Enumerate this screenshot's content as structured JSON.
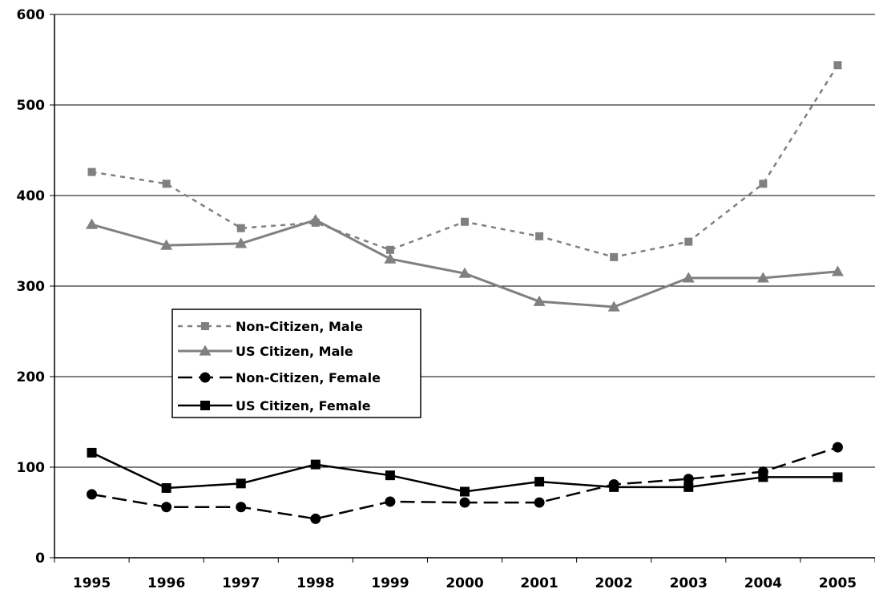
{
  "chart_data": {
    "type": "line",
    "categories": [
      "1995",
      "1996",
      "1997",
      "1998",
      "1999",
      "2000",
      "2001",
      "2002",
      "2003",
      "2004",
      "2005"
    ],
    "ylim": [
      0,
      600
    ],
    "yticks": [
      "0",
      "100",
      "200",
      "300",
      "400",
      "500",
      "600"
    ],
    "grid": true,
    "legend_position": "center-left",
    "series": [
      {
        "name": "Non-Citizen, Male",
        "values": [
          426,
          413,
          364,
          370,
          340,
          371,
          355,
          332,
          349,
          413,
          544
        ],
        "color": "#808080",
        "line": "dotted",
        "marker": "square"
      },
      {
        "name": "US Citizen, Male",
        "values": [
          368,
          345,
          347,
          373,
          330,
          314,
          283,
          277,
          309,
          309,
          316
        ],
        "color": "#808080",
        "line": "solid",
        "marker": "triangle"
      },
      {
        "name": "Non-Citizen, Female",
        "values": [
          70,
          56,
          56,
          43,
          62,
          61,
          61,
          81,
          87,
          95,
          122
        ],
        "color": "#000000",
        "line": "dashed",
        "marker": "circle"
      },
      {
        "name": "US Citizen, Female",
        "values": [
          116,
          77,
          82,
          103,
          91,
          73,
          84,
          78,
          78,
          89,
          89
        ],
        "color": "#000000",
        "line": "solid",
        "marker": "square"
      }
    ]
  }
}
